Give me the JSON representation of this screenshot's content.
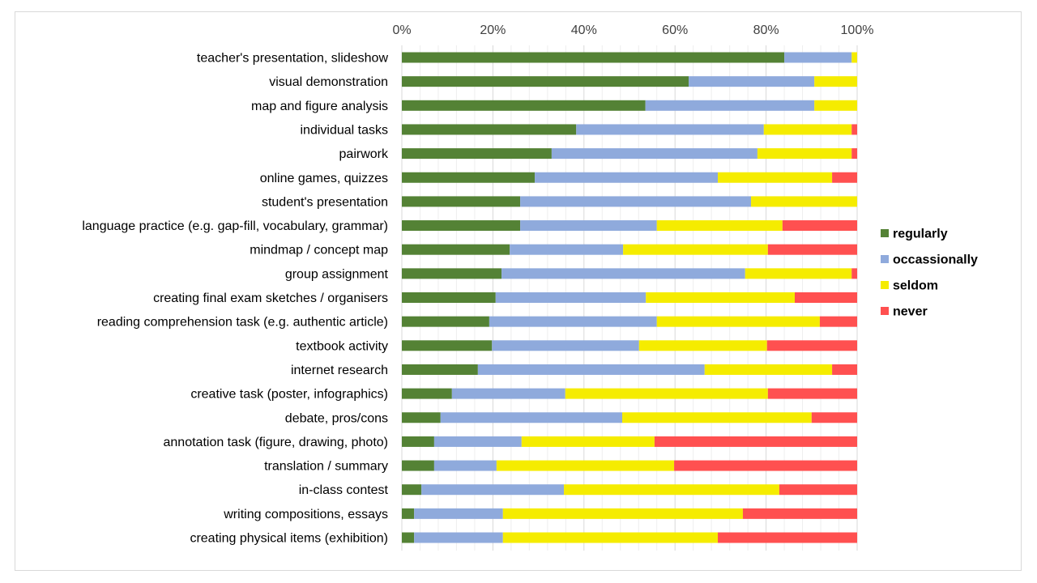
{
  "chart_data": {
    "type": "bar",
    "orientation": "horizontal",
    "stacked": "percent",
    "title": "",
    "xlabel": "",
    "ylabel": "",
    "xlim": [
      0,
      100
    ],
    "x_ticks": [
      "0%",
      "20%",
      "40%",
      "60%",
      "80%",
      "100%"
    ],
    "grid": true,
    "legend_position": "right",
    "categories": [
      "teacher's presentation, slideshow",
      "visual demonstration",
      "map and figure analysis",
      "individual tasks",
      "pairwork",
      "online games, quizzes",
      "student's presentation",
      "language practice  (e.g. gap-fill, vocabulary, grammar)",
      "mindmap / concept map",
      "group assignment",
      "creating final exam sketches / organisers",
      "reading comprehension task (e.g. authentic article)",
      "textbook activity",
      "internet research",
      "creative task (poster, infographics)",
      "debate, pros/cons",
      "annotation task (figure, drawing, photo)",
      "translation / summary",
      "in-class contest",
      "writing compositions, essays",
      "creating physical items (exhibition)"
    ],
    "series": [
      {
        "name": "regularly",
        "color": "#548235",
        "values": [
          84,
          63,
          53.5,
          38.3,
          32.9,
          29.2,
          26,
          26,
          23.7,
          21.9,
          20.6,
          19.2,
          19.8,
          16.7,
          11,
          8.5,
          7.1,
          7.1,
          4.3,
          2.7,
          2.7
        ]
      },
      {
        "name": "occassionally",
        "color": "#8FAADC",
        "values": [
          14.8,
          27.6,
          37.1,
          41.2,
          45.2,
          40.2,
          50.7,
          30,
          24.9,
          53.5,
          33,
          36.8,
          32.3,
          49.8,
          24.9,
          39.9,
          19.2,
          13.7,
          31.3,
          19.5,
          19.5
        ]
      },
      {
        "name": "seldom",
        "color": "#F5EC00",
        "values": [
          1.2,
          9.4,
          9.4,
          19.3,
          20.7,
          25.1,
          23.3,
          27.6,
          31.8,
          23.4,
          32.7,
          35.8,
          28.1,
          28,
          44.5,
          41.6,
          29.2,
          39,
          47.3,
          52.7,
          47.2
        ]
      },
      {
        "name": "never",
        "color": "#FF5050",
        "values": [
          0,
          0,
          0,
          1.2,
          1.2,
          5.5,
          0,
          16.4,
          19.6,
          1.2,
          13.7,
          8.2,
          19.8,
          5.5,
          19.6,
          10,
          44.5,
          40.2,
          17.1,
          25.1,
          30.6
        ]
      }
    ]
  }
}
